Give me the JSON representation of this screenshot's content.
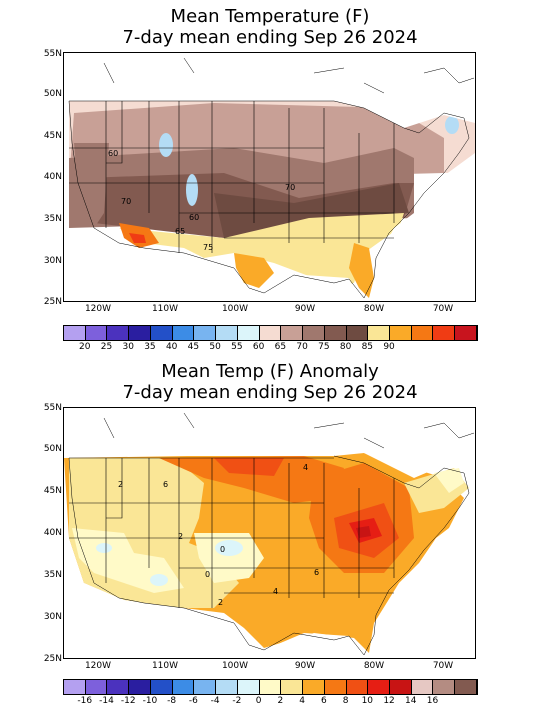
{
  "panel1": {
    "title_line1": "Mean Temperature (F)",
    "title_line2": "7-day mean ending Sep 26 2024",
    "lat_labels": [
      "55N",
      "50N",
      "45N",
      "40N",
      "35N",
      "30N",
      "25N"
    ],
    "lon_labels": [
      "120W",
      "110W",
      "100W",
      "90W",
      "80W",
      "70W"
    ],
    "contour_labels": [
      "60",
      "70",
      "70",
      "75",
      "65",
      "60",
      "75"
    ],
    "legend": {
      "colors": [
        "#b4a0f0",
        "#7d60dc",
        "#4b32be",
        "#2a1ea0",
        "#2350c8",
        "#3c8ce6",
        "#78b4f0",
        "#b4dcf5",
        "#dcf5fa",
        "#f5dcd2",
        "#c8a096",
        "#a0786e",
        "#825a50",
        "#6e4b41",
        "#fae696",
        "#faaa28",
        "#f57814",
        "#f03c14",
        "#c8141e"
      ],
      "labels": [
        "20",
        "25",
        "30",
        "35",
        "40",
        "45",
        "50",
        "55",
        "60",
        "65",
        "70",
        "75",
        "80",
        "85",
        "90"
      ]
    }
  },
  "panel2": {
    "title_line1": "Mean Temp (F) Anomaly",
    "title_line2": "7-day mean ending Sep 26 2024",
    "lat_labels": [
      "55N",
      "50N",
      "45N",
      "40N",
      "35N",
      "30N",
      "25N"
    ],
    "lon_labels": [
      "120W",
      "110W",
      "100W",
      "90W",
      "80W",
      "70W"
    ],
    "contour_labels": [
      "2",
      "6",
      "4",
      "2",
      "0",
      "0",
      "2",
      "4",
      "6",
      "8",
      "4",
      "2"
    ],
    "legend": {
      "colors": [
        "#b4a0f0",
        "#7d60dc",
        "#4b32be",
        "#2a1ea0",
        "#2350c8",
        "#3c8ce6",
        "#78b4f0",
        "#b4dcf5",
        "#dcf5fa",
        "#fffac8",
        "#fae696",
        "#faaa28",
        "#f57814",
        "#f05014",
        "#e61e14",
        "#c81414",
        "#e6c8c3",
        "#b48c82",
        "#825a50"
      ],
      "labels": [
        "-16",
        "-14",
        "-12",
        "-10",
        "-8",
        "-6",
        "-4",
        "-2",
        "0",
        "2",
        "4",
        "6",
        "8",
        "10",
        "12",
        "14",
        "16"
      ]
    }
  }
}
